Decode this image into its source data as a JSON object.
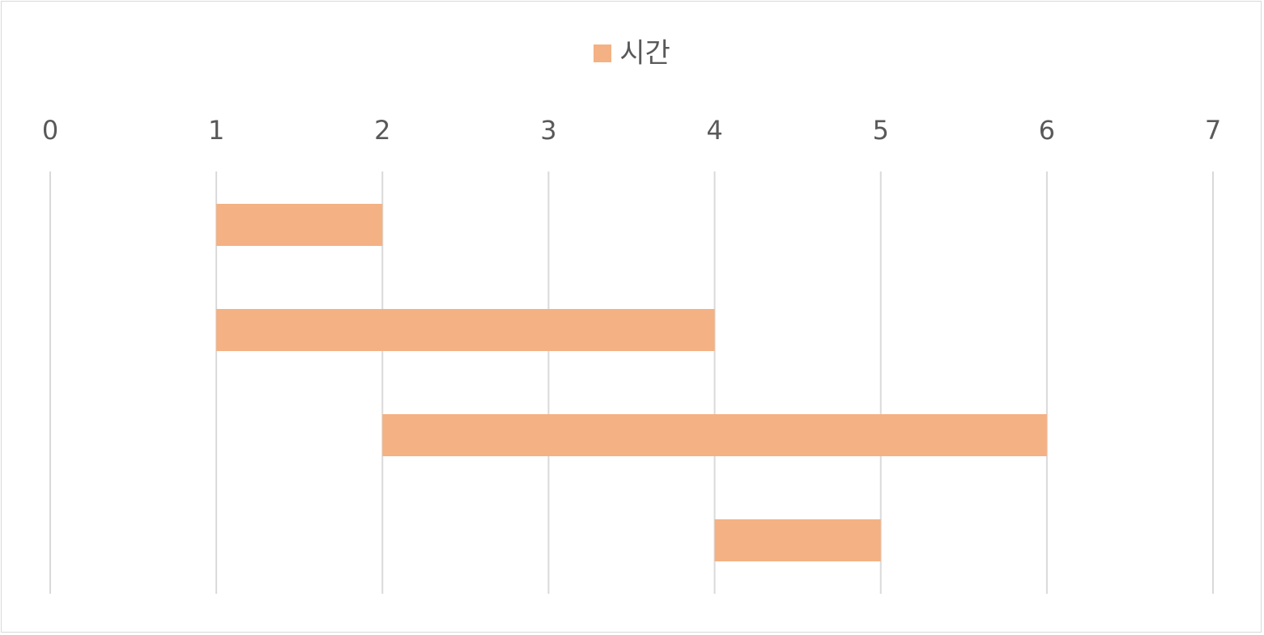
{
  "chart_data": {
    "type": "bar",
    "orientation": "horizontal",
    "stacked": true,
    "x_axis_position": "top",
    "xlim": [
      0,
      7
    ],
    "xticks": [
      "0",
      "1",
      "2",
      "3",
      "4",
      "5",
      "6",
      "7"
    ],
    "grid": true,
    "legend_position": "top",
    "legend": [
      "시간"
    ],
    "title": "",
    "xlabel": "",
    "ylabel": "",
    "bars": [
      {
        "start": 1,
        "duration": 1
      },
      {
        "start": 1,
        "duration": 3
      },
      {
        "start": 2,
        "duration": 4
      },
      {
        "start": 4,
        "duration": 1
      }
    ],
    "series": [
      {
        "name": "시간",
        "color": "#f4b183"
      }
    ]
  }
}
